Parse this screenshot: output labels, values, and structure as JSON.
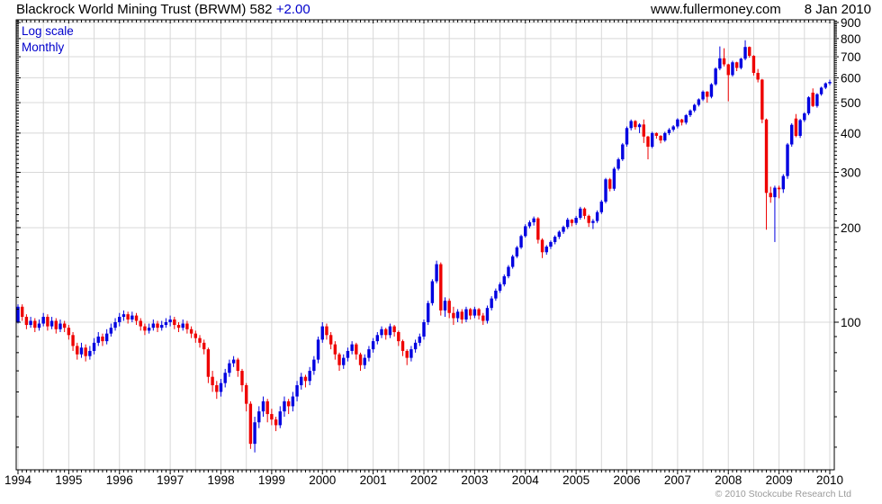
{
  "header": {
    "title": "Blackrock World Mining Trust (BRWM) 582",
    "change": "+2.00",
    "website": "www.fullermoney.com",
    "date": "8 Jan 2010"
  },
  "chart_labels": {
    "scale": "Log scale",
    "interval": "Monthly",
    "copyright": "© 2010 Stockcube Research Ltd"
  },
  "colors": {
    "up": "#0000e0",
    "down": "#ee0000",
    "grid": "#d8d8d8",
    "frame": "#000000",
    "axis_text": "#000000",
    "blue_text": "#0000cc",
    "copyright_gray": "#9a9a9a"
  },
  "chart_data": {
    "type": "candlestick",
    "title": "Blackrock World Mining Trust (BRWM)",
    "last_price": 582,
    "change": 2.0,
    "scale": "log",
    "interval": "monthly",
    "start_month": "1994-01",
    "end_month": "2010-01",
    "x_tick_labels": [
      "1994",
      "1995",
      "1996",
      "1997",
      "1998",
      "1999",
      "2000",
      "2001",
      "2002",
      "2003",
      "2004",
      "2005",
      "2006",
      "2007",
      "2008",
      "2009",
      "2010"
    ],
    "y_tick_labels": [
      100,
      200,
      300,
      400,
      500,
      600,
      700,
      800,
      900
    ],
    "ylim": [
      34,
      918
    ],
    "grid": "on",
    "legend_position": "none",
    "ohlc": [
      [
        100,
        114,
        99,
        112
      ],
      [
        112,
        114,
        101,
        104
      ],
      [
        104,
        106,
        95,
        98
      ],
      [
        98,
        104,
        96,
        101
      ],
      [
        101,
        103,
        93,
        96
      ],
      [
        96,
        102,
        94,
        99
      ],
      [
        99,
        107,
        97,
        104
      ],
      [
        104,
        106,
        94,
        97
      ],
      [
        97,
        104,
        95,
        101
      ],
      [
        101,
        103,
        92,
        95
      ],
      [
        95,
        102,
        93,
        99
      ],
      [
        99,
        101,
        93,
        96
      ],
      [
        96,
        98,
        88,
        91
      ],
      [
        91,
        93,
        81,
        84
      ],
      [
        84,
        86,
        76,
        79
      ],
      [
        79,
        86,
        77,
        83
      ],
      [
        83,
        85,
        75,
        78
      ],
      [
        78,
        84,
        76,
        81
      ],
      [
        81,
        89,
        79,
        86
      ],
      [
        86,
        93,
        84,
        90
      ],
      [
        90,
        92,
        84,
        87
      ],
      [
        87,
        95,
        85,
        92
      ],
      [
        92,
        99,
        90,
        96
      ],
      [
        96,
        103,
        94,
        100
      ],
      [
        100,
        107,
        97,
        104
      ],
      [
        104,
        109,
        101,
        106
      ],
      [
        106,
        108,
        99,
        102
      ],
      [
        102,
        108,
        100,
        105
      ],
      [
        105,
        107,
        98,
        101
      ],
      [
        101,
        103,
        94,
        97
      ],
      [
        97,
        99,
        91,
        94
      ],
      [
        94,
        99,
        92,
        96
      ],
      [
        96,
        102,
        94,
        99
      ],
      [
        99,
        101,
        93,
        96
      ],
      [
        96,
        101,
        94,
        98
      ],
      [
        98,
        103,
        96,
        100
      ],
      [
        100,
        105,
        97,
        102
      ],
      [
        102,
        104,
        95,
        98
      ],
      [
        98,
        100,
        93,
        96
      ],
      [
        96,
        102,
        94,
        99
      ],
      [
        99,
        101,
        92,
        95
      ],
      [
        95,
        97,
        89,
        92
      ],
      [
        92,
        94,
        86,
        89
      ],
      [
        89,
        91,
        83,
        86
      ],
      [
        86,
        88,
        79,
        82
      ],
      [
        82,
        83,
        64,
        67
      ],
      [
        67,
        70,
        60,
        63
      ],
      [
        63,
        65,
        57,
        60
      ],
      [
        60,
        66,
        58,
        64
      ],
      [
        64,
        71,
        62,
        69
      ],
      [
        69,
        76,
        67,
        74
      ],
      [
        74,
        78,
        72,
        76
      ],
      [
        76,
        77,
        67,
        70
      ],
      [
        70,
        71,
        60,
        63
      ],
      [
        63,
        64,
        52,
        55
      ],
      [
        55,
        56,
        39.5,
        41
      ],
      [
        41,
        50,
        38.5,
        48
      ],
      [
        48,
        54,
        46,
        52
      ],
      [
        52,
        58,
        50,
        56
      ],
      [
        56,
        57,
        48,
        51
      ],
      [
        51,
        53,
        47,
        49
      ],
      [
        49,
        50,
        45,
        47
      ],
      [
        47,
        54,
        46,
        52
      ],
      [
        52,
        58,
        50,
        56
      ],
      [
        56,
        57,
        51,
        54
      ],
      [
        54,
        60,
        52,
        58
      ],
      [
        58,
        65,
        56,
        63
      ],
      [
        63,
        69,
        61,
        67
      ],
      [
        67,
        68,
        62,
        65
      ],
      [
        65,
        72,
        63,
        70
      ],
      [
        70,
        78,
        68,
        76
      ],
      [
        76,
        90,
        74,
        88
      ],
      [
        88,
        100,
        86,
        97
      ],
      [
        97,
        99,
        88,
        91
      ],
      [
        91,
        93,
        82,
        85
      ],
      [
        85,
        87,
        76,
        79
      ],
      [
        79,
        80,
        70,
        73
      ],
      [
        73,
        79,
        71,
        77
      ],
      [
        77,
        83,
        75,
        81
      ],
      [
        81,
        87,
        79,
        85
      ],
      [
        85,
        86,
        76,
        79
      ],
      [
        79,
        80,
        70,
        73
      ],
      [
        73,
        79,
        71,
        77
      ],
      [
        77,
        84,
        75,
        82
      ],
      [
        82,
        89,
        80,
        87
      ],
      [
        87,
        93,
        85,
        91
      ],
      [
        91,
        97,
        89,
        95
      ],
      [
        95,
        96,
        88,
        91
      ],
      [
        91,
        99,
        89,
        97
      ],
      [
        97,
        98,
        90,
        93
      ],
      [
        93,
        94,
        84,
        87
      ],
      [
        87,
        88,
        78,
        81
      ],
      [
        81,
        82,
        73,
        77
      ],
      [
        77,
        84,
        75,
        82
      ],
      [
        82,
        88,
        80,
        86
      ],
      [
        86,
        92,
        84,
        90
      ],
      [
        90,
        102,
        88,
        100
      ],
      [
        100,
        117,
        98,
        115
      ],
      [
        115,
        137,
        113,
        135
      ],
      [
        135,
        157,
        133,
        153
      ],
      [
        153,
        155,
        105,
        109
      ],
      [
        109,
        120,
        104,
        117
      ],
      [
        117,
        119,
        103,
        107
      ],
      [
        107,
        112,
        98,
        103
      ],
      [
        103,
        110,
        100,
        108
      ],
      [
        108,
        110,
        99,
        102
      ],
      [
        102,
        112,
        100,
        110
      ],
      [
        110,
        111,
        102,
        105
      ],
      [
        105,
        112,
        103,
        110
      ],
      [
        110,
        111,
        102,
        105
      ],
      [
        105,
        107,
        98,
        101
      ],
      [
        101,
        113,
        99,
        111
      ],
      [
        111,
        121,
        109,
        119
      ],
      [
        119,
        128,
        117,
        126
      ],
      [
        126,
        134,
        124,
        132
      ],
      [
        132,
        142,
        130,
        140
      ],
      [
        140,
        152,
        138,
        150
      ],
      [
        150,
        164,
        148,
        162
      ],
      [
        162,
        175,
        160,
        173
      ],
      [
        173,
        190,
        171,
        188
      ],
      [
        188,
        205,
        186,
        202
      ],
      [
        202,
        211,
        199,
        208
      ],
      [
        208,
        217,
        203,
        214
      ],
      [
        214,
        216,
        178,
        183
      ],
      [
        183,
        185,
        160,
        167
      ],
      [
        167,
        176,
        164,
        174
      ],
      [
        174,
        182,
        171,
        180
      ],
      [
        180,
        189,
        177,
        187
      ],
      [
        187,
        196,
        184,
        194
      ],
      [
        194,
        203,
        191,
        201
      ],
      [
        201,
        215,
        198,
        212
      ],
      [
        212,
        213,
        202,
        207
      ],
      [
        207,
        218,
        204,
        215
      ],
      [
        215,
        233,
        212,
        230
      ],
      [
        230,
        232,
        213,
        218
      ],
      [
        218,
        220,
        201,
        207
      ],
      [
        207,
        213,
        198,
        210
      ],
      [
        210,
        227,
        207,
        224
      ],
      [
        224,
        245,
        221,
        242
      ],
      [
        242,
        288,
        239,
        285
      ],
      [
        285,
        288,
        261,
        266
      ],
      [
        266,
        312,
        262,
        308
      ],
      [
        308,
        334,
        304,
        330
      ],
      [
        330,
        372,
        326,
        368
      ],
      [
        368,
        420,
        362,
        415
      ],
      [
        415,
        442,
        408,
        437
      ],
      [
        437,
        440,
        410,
        418
      ],
      [
        418,
        430,
        400,
        426
      ],
      [
        426,
        442,
        372,
        390
      ],
      [
        390,
        392,
        330,
        362
      ],
      [
        362,
        404,
        358,
        400
      ],
      [
        400,
        402,
        384,
        392
      ],
      [
        392,
        394,
        371,
        379
      ],
      [
        379,
        404,
        375,
        400
      ],
      [
        400,
        415,
        394,
        410
      ],
      [
        410,
        424,
        404,
        420
      ],
      [
        420,
        446,
        414,
        442
      ],
      [
        442,
        444,
        423,
        432
      ],
      [
        432,
        460,
        426,
        456
      ],
      [
        456,
        476,
        450,
        472
      ],
      [
        472,
        496,
        466,
        492
      ],
      [
        492,
        516,
        486,
        512
      ],
      [
        512,
        547,
        506,
        542
      ],
      [
        542,
        544,
        500,
        522
      ],
      [
        522,
        577,
        516,
        572
      ],
      [
        572,
        648,
        566,
        642
      ],
      [
        642,
        755,
        634,
        692
      ],
      [
        692,
        745,
        652,
        662
      ],
      [
        662,
        665,
        505,
        612
      ],
      [
        612,
        680,
        605,
        672
      ],
      [
        672,
        675,
        630,
        645
      ],
      [
        645,
        695,
        638,
        690
      ],
      [
        690,
        790,
        682,
        752
      ],
      [
        752,
        755,
        695,
        705
      ],
      [
        705,
        708,
        610,
        622
      ],
      [
        622,
        640,
        580,
        592
      ],
      [
        592,
        595,
        430,
        442
      ],
      [
        442,
        445,
        197,
        258
      ],
      [
        258,
        270,
        240,
        250
      ],
      [
        250,
        272,
        180,
        268
      ],
      [
        268,
        272,
        248,
        265
      ],
      [
        265,
        296,
        258,
        292
      ],
      [
        292,
        372,
        286,
        368
      ],
      [
        368,
        430,
        362,
        425
      ],
      [
        445,
        460,
        388,
        392
      ],
      [
        392,
        444,
        386,
        440
      ],
      [
        440,
        466,
        434,
        462
      ],
      [
        462,
        524,
        456,
        520
      ],
      [
        538,
        555,
        484,
        488
      ],
      [
        488,
        536,
        482,
        532
      ],
      [
        532,
        562,
        526,
        558
      ],
      [
        558,
        580,
        552,
        576
      ],
      [
        576,
        592,
        568,
        582
      ]
    ]
  }
}
